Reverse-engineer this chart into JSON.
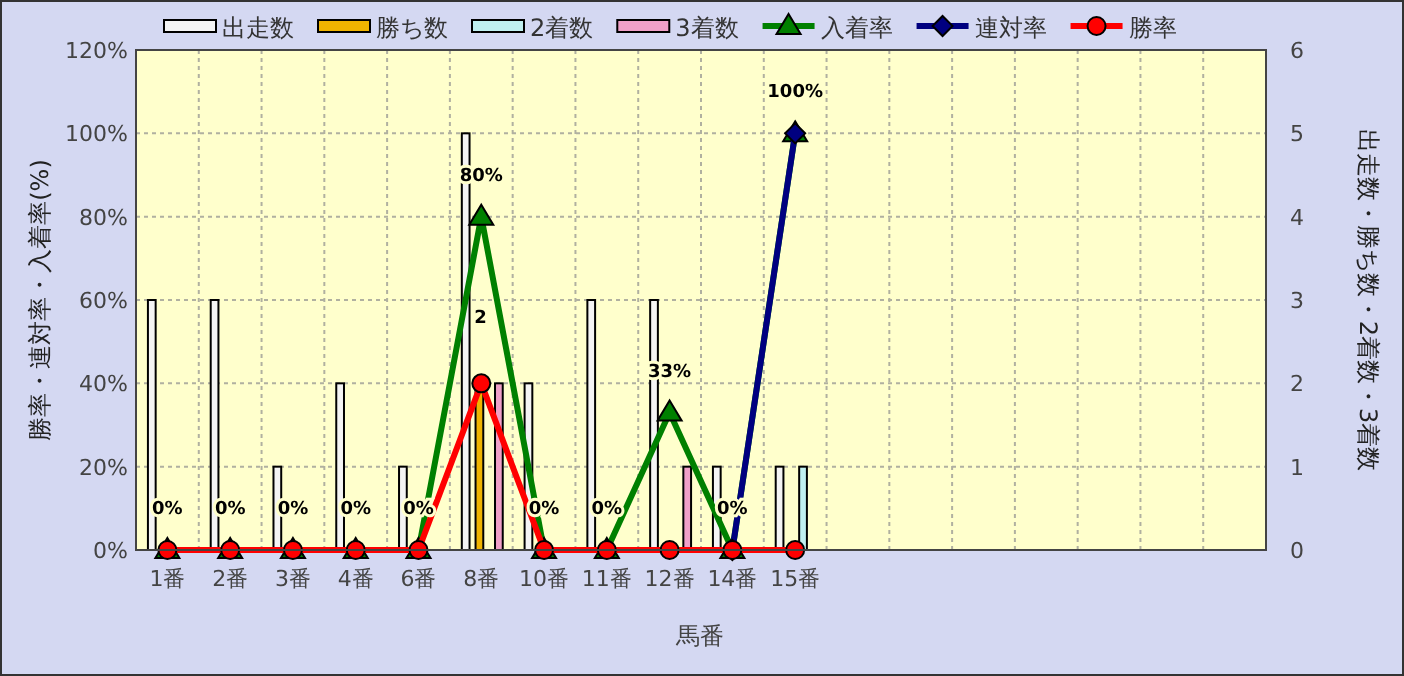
{
  "chart_data": {
    "type": "bar",
    "xlabel": "馬番",
    "ylabel": "勝率・連対率・入着率(%)",
    "y2label": "出走数・勝ち数・2着数・3着数",
    "categories": [
      "1番",
      "2番",
      "3番",
      "4番",
      "6番",
      "8番",
      "10番",
      "11番",
      "12番",
      "14番",
      "15番",
      null,
      null,
      null,
      null,
      null,
      null,
      null
    ],
    "series": [
      {
        "name": "出走数",
        "axis": "y2",
        "color": "#f4f4f4",
        "values": [
          3,
          3,
          1,
          2,
          1,
          5,
          2,
          3,
          3,
          1,
          1,
          null,
          null,
          null,
          null,
          null,
          null,
          null
        ]
      },
      {
        "name": "勝ち数",
        "axis": "y2",
        "color": "#f0b400",
        "values": [
          0,
          0,
          0,
          0,
          0,
          2,
          0,
          0,
          0,
          0,
          0,
          null,
          null,
          null,
          null,
          null,
          null,
          null
        ],
        "value_labels": [
          null,
          null,
          null,
          null,
          null,
          "2",
          null,
          null,
          null,
          null,
          null,
          null,
          null,
          null,
          null,
          null,
          null,
          null
        ]
      },
      {
        "name": "2着数",
        "axis": "y2",
        "color": "#c0f0f0",
        "values": [
          0,
          0,
          0,
          0,
          0,
          0,
          0,
          0,
          0,
          0,
          1,
          null,
          null,
          null,
          null,
          null,
          null,
          null
        ]
      },
      {
        "name": "3着数",
        "axis": "y2",
        "color": "#f0a0c8",
        "values": [
          0,
          0,
          0,
          0,
          0,
          2,
          0,
          0,
          1,
          0,
          0,
          null,
          null,
          null,
          null,
          null,
          null,
          null
        ]
      },
      {
        "name": "入着率",
        "type": "line",
        "marker": "triangle",
        "color": "#008000",
        "values": [
          0,
          0,
          0,
          0,
          0,
          80,
          0,
          0,
          33,
          0,
          100,
          null,
          null,
          null,
          null,
          null,
          null,
          null
        ],
        "value_labels": [
          "0%",
          "0%",
          "0%",
          "0%",
          "0%",
          "80%",
          "0%",
          "0%",
          "33%",
          "0%",
          "100%",
          null,
          null,
          null,
          null,
          null,
          null,
          null
        ]
      },
      {
        "name": "連対率",
        "type": "line",
        "marker": "diamond",
        "color": "#000080",
        "values": [
          null,
          null,
          null,
          null,
          null,
          null,
          null,
          null,
          null,
          0,
          100,
          null,
          null,
          null,
          null,
          null,
          null,
          null
        ]
      },
      {
        "name": "勝率",
        "type": "line",
        "marker": "circle",
        "color": "#ff0000",
        "values": [
          0,
          0,
          0,
          0,
          0,
          40,
          0,
          0,
          0,
          0,
          0,
          null,
          null,
          null,
          null,
          null,
          null,
          null
        ]
      }
    ],
    "ylim": [
      0,
      120
    ],
    "yticks": [
      {
        "value": 0,
        "label": "0%"
      },
      {
        "value": 20,
        "label": "20%"
      },
      {
        "value": 40,
        "label": "40%"
      },
      {
        "value": 60,
        "label": "60%"
      },
      {
        "value": 80,
        "label": "80%"
      },
      {
        "value": 100,
        "label": "100%"
      },
      {
        "value": 120,
        "label": "120%"
      }
    ],
    "y2lim": [
      0,
      6
    ],
    "y2ticks": [
      0,
      1,
      2,
      3,
      4,
      5,
      6
    ],
    "grid": true,
    "legend": "top"
  }
}
